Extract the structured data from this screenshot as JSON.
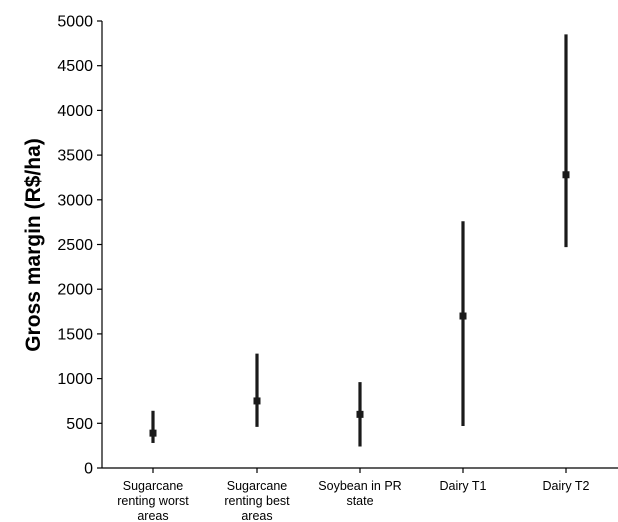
{
  "chart_data": {
    "type": "scatter",
    "title": "",
    "xlabel": "",
    "ylabel": "Gross margin (R$/ha)",
    "ylim": [
      0,
      5000
    ],
    "yticks": [
      0,
      500,
      1000,
      1500,
      2000,
      2500,
      3000,
      3500,
      4000,
      4500,
      5000
    ],
    "grid": false,
    "categories": [
      [
        "Sugarcane",
        "renting worst",
        "areas"
      ],
      [
        "Sugarcane",
        "renting best",
        "areas"
      ],
      [
        "Soybean in PR",
        "state"
      ],
      [
        "Dairy T1"
      ],
      [
        "Dairy T2"
      ]
    ],
    "series": [
      {
        "values": [
          390,
          750,
          600,
          1700,
          3280
        ],
        "low": [
          280,
          460,
          240,
          470,
          2470
        ],
        "high": [
          640,
          1280,
          960,
          2760,
          4850
        ]
      }
    ],
    "colors": {
      "marks": "#1a1a1a",
      "axis": "#000000"
    }
  }
}
